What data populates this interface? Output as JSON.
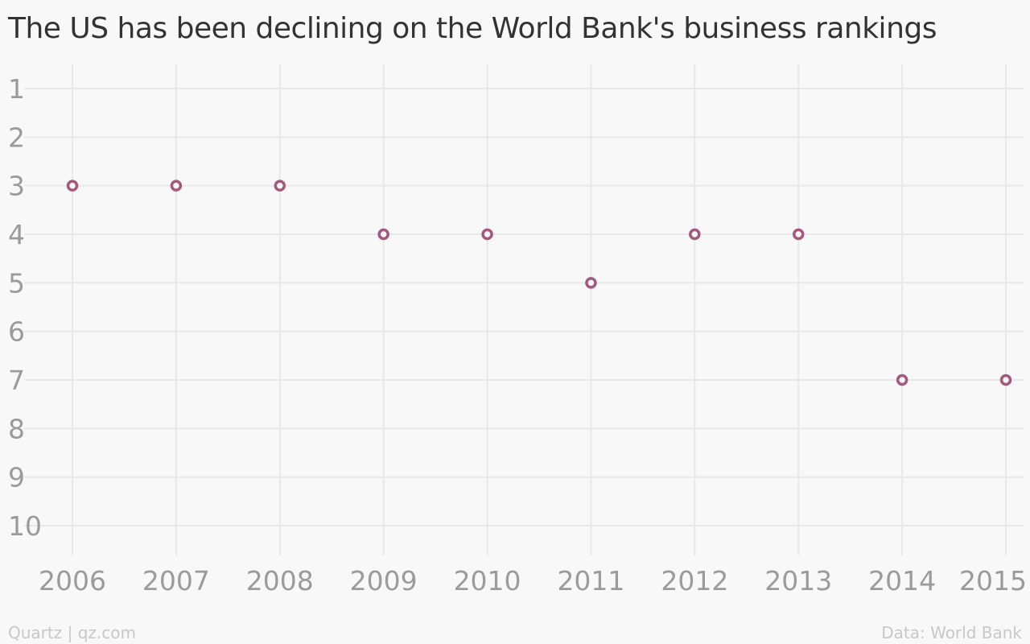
{
  "title": "The US has been declining on the World Bank's business rankings",
  "footer": {
    "credit": "Quartz | qz.com",
    "source": "Data: World Bank"
  },
  "colors": {
    "marker": "#a6577e",
    "grid": "#e8e8e8",
    "tick_text": "#9b9b9b",
    "background": "#f8f8f8"
  },
  "chart_data": {
    "type": "scatter",
    "title": "The US has been declining on the World Bank's business rankings",
    "xlabel": "",
    "ylabel": "",
    "x": [
      2006,
      2007,
      2008,
      2009,
      2010,
      2011,
      2012,
      2013,
      2014,
      2015
    ],
    "y": [
      3,
      3,
      3,
      4,
      4,
      5,
      4,
      4,
      7,
      7
    ],
    "x_ticks": [
      "2006",
      "2007",
      "2008",
      "2009",
      "2010",
      "2011",
      "2012",
      "2013",
      "2014",
      "2015"
    ],
    "y_ticks": [
      "1",
      "2",
      "3",
      "4",
      "5",
      "6",
      "7",
      "8",
      "9",
      "10"
    ],
    "xlim": [
      2006,
      2015
    ],
    "ylim": [
      1,
      10
    ],
    "y_inverted": true,
    "grid": true,
    "legend": "none",
    "marker_style": "hollow-circle"
  }
}
